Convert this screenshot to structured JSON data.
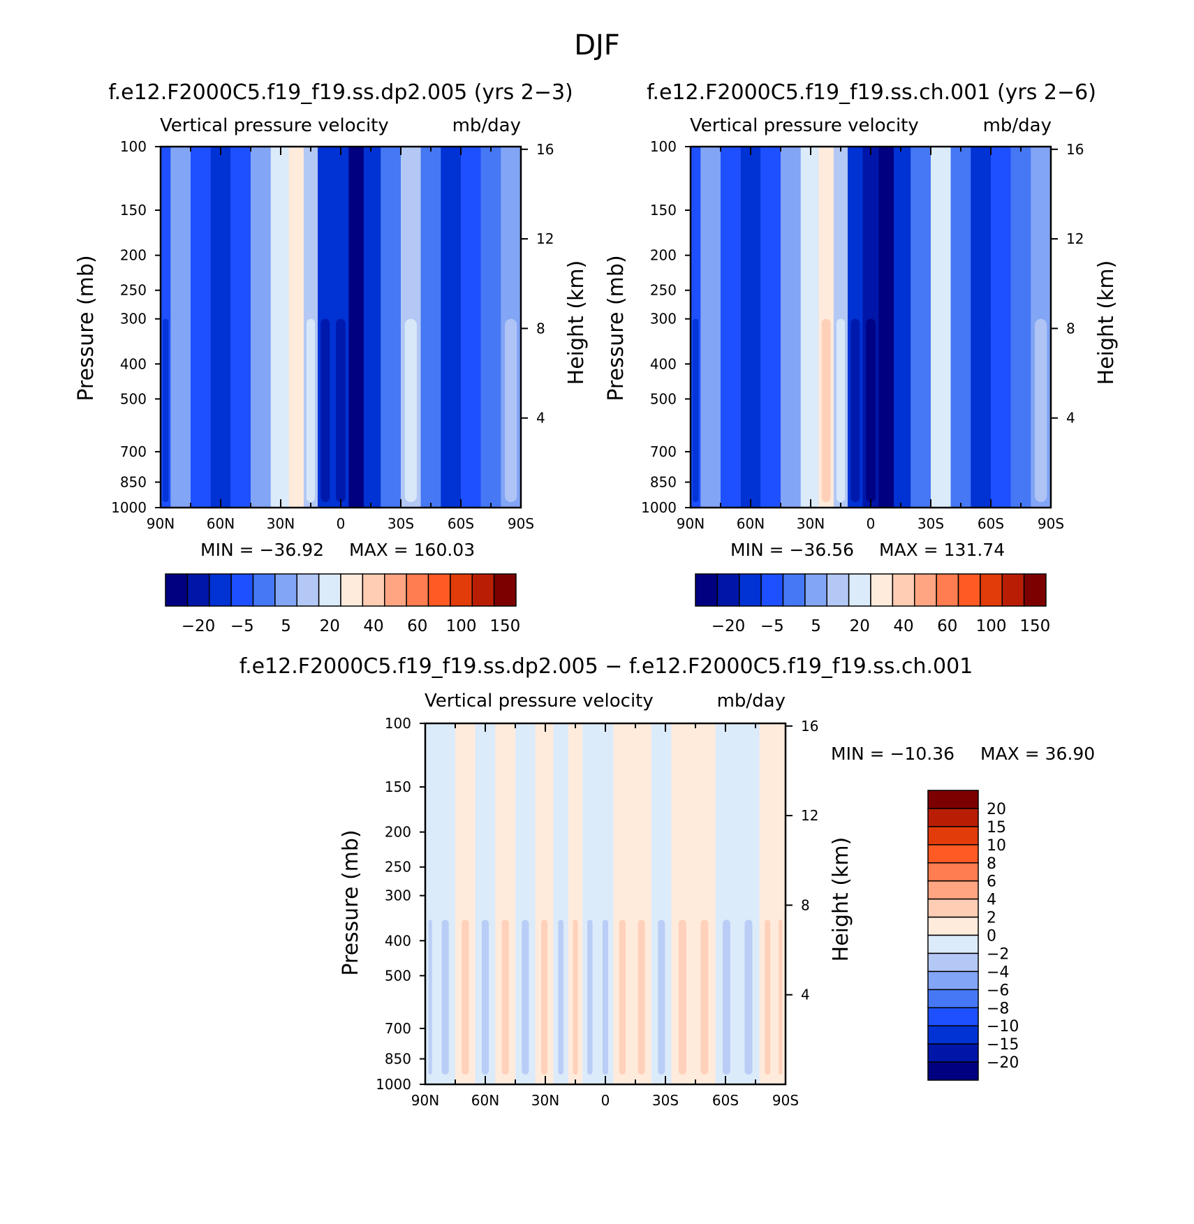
{
  "figure": {
    "title": "DJF"
  },
  "chart_data": [
    {
      "type": "heatmap",
      "id": "p1",
      "title": "f.e12.F2000C5.f19_f19.ss.dp2.005 (yrs 2−3)",
      "subtitle_left": "Vertical pressure velocity",
      "subtitle_right": "mb/day",
      "xlabel": "",
      "ylabel": "Pressure (mb)",
      "y2label": "Height (km)",
      "x_ticks": [
        "90N",
        "60N",
        "30N",
        "0",
        "30S",
        "60S",
        "90S"
      ],
      "x_tick_values": [
        90,
        60,
        30,
        0,
        -30,
        -60,
        -90
      ],
      "y_ticks": [
        "100",
        "150",
        "200",
        "250",
        "300",
        "400",
        "500",
        "700",
        "850",
        "1000"
      ],
      "y_tick_values": [
        100,
        150,
        200,
        250,
        300,
        400,
        500,
        700,
        850,
        1000
      ],
      "y2_ticks": [
        "16",
        "12",
        "8",
        "4"
      ],
      "y2_tick_values": [
        16,
        12,
        8,
        4
      ],
      "ylim": [
        1000,
        100
      ],
      "xlim": [
        90,
        -90
      ],
      "min_label": "MIN = −36.92",
      "max_label": "MAX = 160.03",
      "colorbar_labels": [
        "−20",
        "−5",
        "5",
        "20",
        "40",
        "60",
        "100",
        "150"
      ],
      "columns": [
        {
          "lat": 90,
          "value": -8
        },
        {
          "lat": 80,
          "value": 3
        },
        {
          "lat": 70,
          "value": -5
        },
        {
          "lat": 60,
          "value": -12
        },
        {
          "lat": 50,
          "value": -6
        },
        {
          "lat": 40,
          "value": 2
        },
        {
          "lat": 30,
          "value": 12
        },
        {
          "lat": 22,
          "value": 22
        },
        {
          "lat": 15,
          "value": 8
        },
        {
          "lat": 8,
          "value": -15
        },
        {
          "lat": 0,
          "value": -18
        },
        {
          "lat": -8,
          "value": -25
        },
        {
          "lat": -15,
          "value": -12
        },
        {
          "lat": -25,
          "value": -3
        },
        {
          "lat": -35,
          "value": 10
        },
        {
          "lat": -45,
          "value": -2
        },
        {
          "lat": -55,
          "value": -10
        },
        {
          "lat": -65,
          "value": -5
        },
        {
          "lat": -75,
          "value": 0
        },
        {
          "lat": -85,
          "value": 5
        }
      ]
    },
    {
      "type": "heatmap",
      "id": "p2",
      "title": "f.e12.F2000C5.f19_f19.ss.ch.001 (yrs 2−6)",
      "subtitle_left": "Vertical pressure velocity",
      "subtitle_right": "mb/day",
      "xlabel": "",
      "ylabel": "Pressure (mb)",
      "y2label": "Height (km)",
      "x_ticks": [
        "90N",
        "60N",
        "30N",
        "0",
        "30S",
        "60S",
        "90S"
      ],
      "x_tick_values": [
        90,
        60,
        30,
        0,
        -30,
        -60,
        -90
      ],
      "y_ticks": [
        "100",
        "150",
        "200",
        "250",
        "300",
        "400",
        "500",
        "700",
        "850",
        "1000"
      ],
      "y_tick_values": [
        100,
        150,
        200,
        250,
        300,
        400,
        500,
        700,
        850,
        1000
      ],
      "y2_ticks": [
        "16",
        "12",
        "8",
        "4"
      ],
      "y2_tick_values": [
        16,
        12,
        8,
        4
      ],
      "ylim": [
        1000,
        100
      ],
      "xlim": [
        90,
        -90
      ],
      "min_label": "MIN = −36.56",
      "max_label": "MAX = 131.74",
      "colorbar_labels": [
        "−20",
        "−5",
        "5",
        "20",
        "40",
        "60",
        "100",
        "150"
      ],
      "columns": [
        {
          "lat": 90,
          "value": -8
        },
        {
          "lat": 80,
          "value": 3
        },
        {
          "lat": 70,
          "value": -5
        },
        {
          "lat": 60,
          "value": -12
        },
        {
          "lat": 50,
          "value": -6
        },
        {
          "lat": 40,
          "value": 3
        },
        {
          "lat": 30,
          "value": 14
        },
        {
          "lat": 22,
          "value": 24
        },
        {
          "lat": 15,
          "value": 8
        },
        {
          "lat": 8,
          "value": -15
        },
        {
          "lat": 0,
          "value": -20
        },
        {
          "lat": -8,
          "value": -28
        },
        {
          "lat": -15,
          "value": -12
        },
        {
          "lat": -25,
          "value": -3
        },
        {
          "lat": -35,
          "value": 12
        },
        {
          "lat": -45,
          "value": -2
        },
        {
          "lat": -55,
          "value": -10
        },
        {
          "lat": -65,
          "value": -5
        },
        {
          "lat": -75,
          "value": 0
        },
        {
          "lat": -85,
          "value": 5
        }
      ]
    },
    {
      "type": "heatmap",
      "id": "p3",
      "title": "f.e12.F2000C5.f19_f19.ss.dp2.005 − f.e12.F2000C5.f19_f19.ss.ch.001",
      "subtitle_left": "Vertical pressure velocity",
      "subtitle_right": "mb/day",
      "xlabel": "",
      "ylabel": "Pressure (mb)",
      "y2label": "Height (km)",
      "x_ticks": [
        "90N",
        "60N",
        "30N",
        "0",
        "30S",
        "60S",
        "90S"
      ],
      "x_tick_values": [
        90,
        60,
        30,
        0,
        -30,
        -60,
        -90
      ],
      "y_ticks": [
        "100",
        "150",
        "200",
        "250",
        "300",
        "400",
        "500",
        "700",
        "850",
        "1000"
      ],
      "y_tick_values": [
        100,
        150,
        200,
        250,
        300,
        400,
        500,
        700,
        850,
        1000
      ],
      "y2_ticks": [
        "16",
        "12",
        "8",
        "4"
      ],
      "y2_tick_values": [
        16,
        12,
        8,
        4
      ],
      "ylim": [
        1000,
        100
      ],
      "xlim": [
        90,
        -90
      ],
      "min_label": "MIN = −10.36",
      "max_label": "MAX =  36.90",
      "colorbar_labels": [
        "20",
        "15",
        "10",
        "8",
        "6",
        "4",
        "2",
        "0",
        "−2",
        "−4",
        "−6",
        "−8",
        "−10",
        "−15",
        "−20"
      ],
      "columns": [
        {
          "lat": 90,
          "value": -1
        },
        {
          "lat": 80,
          "value": -1
        },
        {
          "lat": 70,
          "value": 1
        },
        {
          "lat": 60,
          "value": -1
        },
        {
          "lat": 50,
          "value": 1
        },
        {
          "lat": 40,
          "value": -1
        },
        {
          "lat": 30,
          "value": 1
        },
        {
          "lat": 22,
          "value": -1
        },
        {
          "lat": 15,
          "value": 1
        },
        {
          "lat": 8,
          "value": -1
        },
        {
          "lat": 0,
          "value": -1
        },
        {
          "lat": -8,
          "value": 1
        },
        {
          "lat": -18,
          "value": 1
        },
        {
          "lat": -28,
          "value": -1
        },
        {
          "lat": -38,
          "value": 1
        },
        {
          "lat": -50,
          "value": 1
        },
        {
          "lat": -60,
          "value": -1
        },
        {
          "lat": -72,
          "value": -1
        },
        {
          "lat": -82,
          "value": 1
        },
        {
          "lat": -88,
          "value": 1
        }
      ]
    }
  ],
  "colors": {
    "full_scale": [
      "#000080",
      "#0016a8",
      "#0032d4",
      "#1e50ff",
      "#4678f5",
      "#82a5f5",
      "#b4c8f5",
      "#dcebfa",
      "#ffebdc",
      "#ffcdb4",
      "#ffa582",
      "#ff7d50",
      "#ff5a23",
      "#e13c0a",
      "#b91e05",
      "#7d0000"
    ],
    "diff_scale": [
      "#7d0000",
      "#b91e05",
      "#e13c0a",
      "#ff5a23",
      "#ff7d50",
      "#ffa582",
      "#ffcdb4",
      "#ffebdc",
      "#dcebfa",
      "#b4c8f5",
      "#82a5f5",
      "#4678f5",
      "#1e50ff",
      "#0032d4",
      "#0016a8",
      "#000080"
    ],
    "full_thresholds": [
      -25,
      -20,
      -10,
      -5,
      0,
      5,
      10,
      20,
      30,
      40,
      50,
      60,
      80,
      100,
      125,
      150
    ],
    "diff_thresholds": [
      -20,
      -15,
      -10,
      -8,
      -6,
      -4,
      -2,
      0,
      2,
      4,
      6,
      8,
      10,
      15,
      20
    ]
  }
}
